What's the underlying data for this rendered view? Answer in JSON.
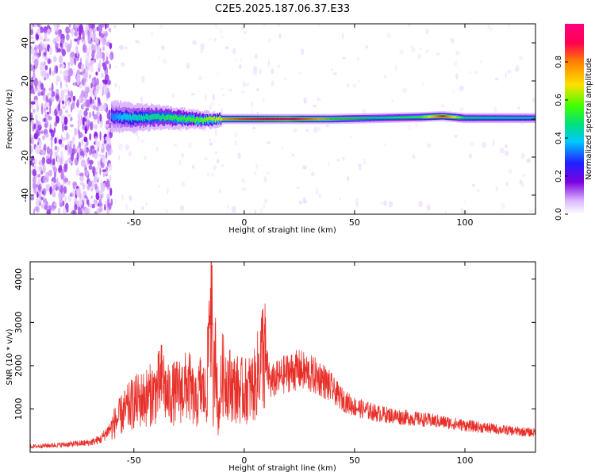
{
  "title": "C2E5.2025.187.06.37.E33",
  "chart_data": [
    {
      "type": "heatmap",
      "xlabel": "Height of straight line (km)",
      "ylabel": "Frequency (Hz)",
      "xlim": [
        -97,
        132
      ],
      "ylim": [
        -50,
        50
      ],
      "xticks": [
        -50,
        0,
        50,
        100
      ],
      "yticks": [
        -40,
        -20,
        0,
        20,
        40
      ],
      "colorbar": {
        "label": "Normalized spectral amplitude",
        "ticks": [
          "0.0",
          "0.2",
          "0.4",
          "0.6",
          "0.8"
        ],
        "range": [
          0,
          1
        ],
        "colormap": [
          "#ffffff",
          "#dcb8ff",
          "#7a00e0",
          "#2020ff",
          "#00c8ff",
          "#00e080",
          "#40ff00",
          "#ffe000",
          "#ff8000",
          "#ff0050",
          "#ff0080"
        ]
      },
      "ridge": [
        {
          "x": -60,
          "y": 1.5,
          "amplitude": 0.35
        },
        {
          "x": -50,
          "y": 0.5,
          "amplitude": 0.45
        },
        {
          "x": -40,
          "y": 1,
          "amplitude": 0.5
        },
        {
          "x": -30,
          "y": 0.5,
          "amplitude": 0.55
        },
        {
          "x": -20,
          "y": -0.5,
          "amplitude": 0.6
        },
        {
          "x": -10,
          "y": 0,
          "amplitude": 0.7
        },
        {
          "x": 0,
          "y": 0,
          "amplitude": 0.85
        },
        {
          "x": 20,
          "y": 0,
          "amplitude": 0.95
        },
        {
          "x": 40,
          "y": 0,
          "amplitude": 0.6
        },
        {
          "x": 60,
          "y": 0.5,
          "amplitude": 0.5
        },
        {
          "x": 80,
          "y": 1,
          "amplitude": 0.55
        },
        {
          "x": 90,
          "y": 1.5,
          "amplitude": 0.9
        },
        {
          "x": 100,
          "y": 0.5,
          "amplitude": 0.5
        },
        {
          "x": 132,
          "y": 0.5,
          "amplitude": 0.45
        }
      ],
      "noise_region_x": [
        -97,
        -60
      ]
    },
    {
      "type": "line",
      "xlabel": "Height of straight line (km)",
      "ylabel": "SNR (10 * v/v)",
      "xlim": [
        -97,
        132
      ],
      "ylim": [
        0,
        4400
      ],
      "xticks": [
        -50,
        0,
        50,
        100
      ],
      "yticks": [
        1000,
        2000,
        3000,
        4000
      ],
      "series": [
        {
          "color": "#e8302a",
          "x": [
            -97,
            -90,
            -80,
            -70,
            -65,
            -60,
            -55,
            -50,
            -45,
            -40,
            -37,
            -35,
            -30,
            -25,
            -22,
            -20,
            -17,
            -15,
            -14,
            -13,
            -12,
            -10,
            -5,
            0,
            5,
            9,
            10,
            12,
            15,
            20,
            25,
            30,
            35,
            40,
            45,
            50,
            60,
            70,
            80,
            90,
            100,
            110,
            120,
            132
          ],
          "y": [
            130,
            150,
            180,
            220,
            300,
            600,
            900,
            1150,
            1250,
            1400,
            1700,
            1300,
            1400,
            1550,
            1100,
            1500,
            1250,
            4350,
            900,
            3100,
            700,
            1800,
            1500,
            1400,
            1550,
            2550,
            2000,
            1600,
            1700,
            1850,
            1900,
            1800,
            1700,
            1450,
            1200,
            1050,
            900,
            820,
            760,
            700,
            620,
            560,
            500,
            450
          ]
        }
      ]
    }
  ]
}
